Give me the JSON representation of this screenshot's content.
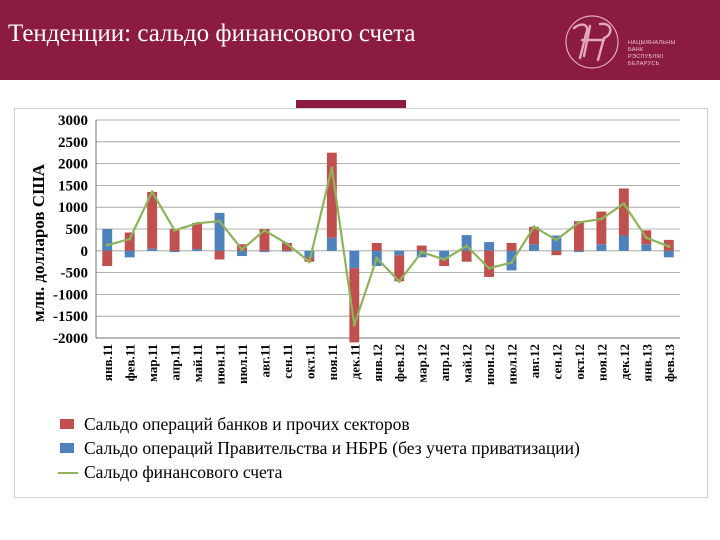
{
  "slide": {
    "title": "Тенденции: сальдо финансового счета",
    "logo_lines": [
      "НАЦЫЯНАЛЬНЫ",
      "БАНК",
      "РЭСПУБЛІКІ",
      "БЕЛАРУСЬ"
    ]
  },
  "colors": {
    "header": "#8c1c3f",
    "banks": "#c0504d",
    "government": "#4f81bd",
    "total": "#8db45c"
  },
  "chart_data": {
    "type": "bar",
    "ylabel": "млн. долларов США",
    "ylim": [
      -2000,
      3000
    ],
    "yticks": [
      3000,
      2500,
      2000,
      1500,
      1000,
      500,
      0,
      -500,
      -1000,
      -1500,
      -2000
    ],
    "grid": true,
    "legend_position": "bottom",
    "categories": [
      "янв.11",
      "фев.11",
      "мар.11",
      "апр.11",
      "май.11",
      "июн.11",
      "июл.11",
      "авг.11",
      "сен.11",
      "окт.11",
      "ноя.11",
      "дек.11",
      "янв.12",
      "фев.12",
      "мар.12",
      "апр.12",
      "май.12",
      "июн.12",
      "июл.12",
      "авг.12",
      "сен.12",
      "окт.12",
      "ноя.12",
      "дек.12",
      "янв.13",
      "фев.13"
    ],
    "series": [
      {
        "name": "Сальдо операций банков и прочих секторов",
        "type": "bar",
        "color": "#c0504d",
        "values": [
          -350,
          420,
          1300,
          500,
          600,
          -200,
          150,
          500,
          180,
          -100,
          1950,
          -1700,
          180,
          -600,
          120,
          -150,
          -250,
          -600,
          180,
          400,
          -100,
          680,
          750,
          1080,
          320,
          250
        ]
      },
      {
        "name": "Сальдо операций Правительства и НБРБ (без учета приватизации)",
        "type": "bar",
        "color": "#4f81bd",
        "values": [
          500,
          -150,
          50,
          -30,
          40,
          870,
          -120,
          -30,
          -20,
          -150,
          300,
          -400,
          -350,
          -100,
          -150,
          -200,
          360,
          200,
          -450,
          150,
          350,
          -30,
          150,
          350,
          150,
          -150
        ]
      },
      {
        "name": "Сальдо финансового счета",
        "type": "line",
        "color": "#8db45c",
        "values": [
          130,
          270,
          1350,
          470,
          630,
          680,
          30,
          470,
          160,
          -250,
          1900,
          -1700,
          -170,
          -700,
          -30,
          -200,
          110,
          -400,
          -270,
          550,
          250,
          650,
          730,
          1080,
          300,
          100
        ]
      }
    ]
  }
}
